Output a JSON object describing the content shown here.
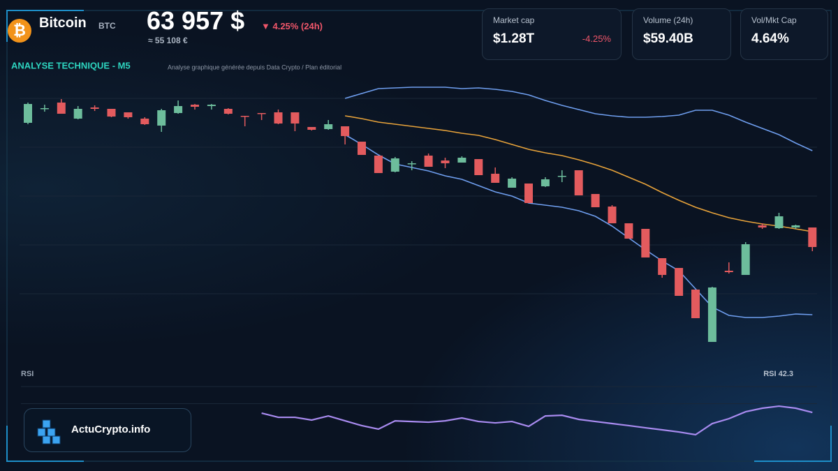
{
  "header": {
    "icon": "₿",
    "name": "Bitcoin",
    "symbol": "BTC",
    "price": "63 957 $",
    "change": "▼ 4.25% (24h)",
    "price_eur": "≈ 55 108 €"
  },
  "stats": [
    {
      "label": "Market cap",
      "value": "$1.28T",
      "change": "-4.25%"
    },
    {
      "label": "Volume (24h)",
      "value": "$59.40B"
    },
    {
      "label": "Vol/Mkt Cap",
      "value": "4.64%"
    }
  ],
  "brand": "ActuCrypto.info",
  "chart_data": [
    {
      "type": "candlestick",
      "title": "ANALYSE TECHNIQUE - M5",
      "subtitle": "Analyse graphique générée depuis Data Crypto / Plan éditorial",
      "open": [
        315,
        335,
        344,
        321,
        337,
        335,
        330,
        321,
        311,
        329,
        341,
        339,
        335,
        325,
        329,
        330,
        330,
        309,
        306,
        310,
        288,
        268,
        245,
        256,
        268,
        261,
        258,
        263,
        242,
        222,
        228,
        224,
        238,
        247,
        213,
        195,
        171,
        163,
        121,
        107,
        76,
        1,
        103,
        97,
        168,
        164,
        165,
        165
      ],
      "high": [
        344,
        341,
        349,
        339,
        340,
        335,
        330,
        323,
        335,
        347,
        342,
        342,
        336,
        325,
        329,
        334,
        330,
        309,
        319,
        310,
        288,
        268,
        266,
        260,
        271,
        265,
        267,
        263,
        251,
        237,
        228,
        237,
        247,
        247,
        213,
        197,
        171,
        163,
        121,
        107,
        76,
        80,
        115,
        144,
        171,
        186,
        169,
        165
      ],
      "low": [
        313,
        331,
        328,
        320,
        332,
        323,
        321,
        312,
        302,
        328,
        334,
        334,
        327,
        310,
        319,
        313,
        303,
        304,
        305,
        284,
        269,
        243,
        244,
        247,
        252,
        250,
        258,
        240,
        229,
        222,
        200,
        223,
        230,
        211,
        194,
        171,
        149,
        122,
        93,
        67,
        35,
        1,
        99,
        97,
        163,
        163,
        163,
        131
      ],
      "close": [
        342,
        336,
        328,
        335,
        335,
        324,
        323,
        313,
        333,
        339,
        338,
        341,
        328,
        324,
        328,
        314,
        314,
        305,
        313,
        296,
        269,
        243,
        264,
        257,
        252,
        257,
        265,
        240,
        229,
        235,
        200,
        234,
        239,
        211,
        194,
        171,
        149,
        122,
        97,
        67,
        35,
        79,
        101,
        141,
        165,
        181,
        168,
        137
      ],
      "up_color": "#6dbd9c",
      "down_color": "#e35b5e",
      "series": [
        {
          "color": "#6f9ff0",
          "values": [
            null,
            null,
            null,
            null,
            null,
            null,
            null,
            null,
            null,
            null,
            null,
            null,
            null,
            null,
            null,
            null,
            null,
            null,
            null,
            350,
            357,
            364,
            365,
            366,
            366,
            366,
            364,
            365,
            363,
            360,
            355,
            347,
            340,
            334,
            328,
            325,
            323,
            323,
            324,
            326,
            333,
            333,
            326,
            316,
            307,
            298,
            286,
            275
          ]
        },
        {
          "color": "#e8a33a",
          "values": [
            null,
            null,
            null,
            null,
            null,
            null,
            null,
            null,
            null,
            null,
            null,
            null,
            null,
            null,
            null,
            null,
            null,
            null,
            null,
            325,
            321,
            316,
            313,
            310,
            307,
            304,
            300,
            297,
            291,
            284,
            277,
            272,
            268,
            262,
            255,
            247,
            237,
            227,
            215,
            204,
            194,
            186,
            179,
            174,
            170,
            167,
            163,
            159
          ]
        },
        {
          "color": "#6f9ff0",
          "values": [
            null,
            null,
            null,
            null,
            null,
            null,
            null,
            null,
            null,
            null,
            null,
            null,
            null,
            null,
            null,
            null,
            null,
            null,
            null,
            298,
            284,
            269,
            256,
            251,
            246,
            239,
            234,
            225,
            216,
            210,
            200,
            197,
            194,
            189,
            181,
            167,
            150,
            133,
            117,
            103,
            77,
            51,
            39,
            36,
            36,
            38,
            41,
            40
          ]
        }
      ],
      "ylim": [
        0,
        420
      ],
      "yticks": [
        70,
        140,
        210,
        280,
        350
      ],
      "grid": true
    },
    {
      "type": "line",
      "title": "RSI",
      "annotation": "RSI 42.3",
      "series": [
        {
          "color": "#a98bf0",
          "values": [
            null,
            null,
            null,
            null,
            null,
            null,
            null,
            null,
            null,
            null,
            null,
            null,
            null,
            null,
            41.7,
            38.0,
            38.0,
            35.6,
            39.2,
            34.9,
            30.7,
            27.6,
            34.9,
            34.3,
            33.7,
            34.9,
            37.4,
            34.3,
            33.1,
            34.3,
            30.0,
            39.2,
            39.8,
            36.2,
            34.3,
            32.5,
            30.7,
            28.8,
            27.0,
            25.1,
            22.7,
            32.5,
            36.8,
            42.9,
            46.0,
            47.8,
            46.0,
            42.3
          ]
        }
      ],
      "ylim": [
        0,
        100
      ],
      "yticks": [
        50,
        65
      ],
      "grid": true
    }
  ]
}
